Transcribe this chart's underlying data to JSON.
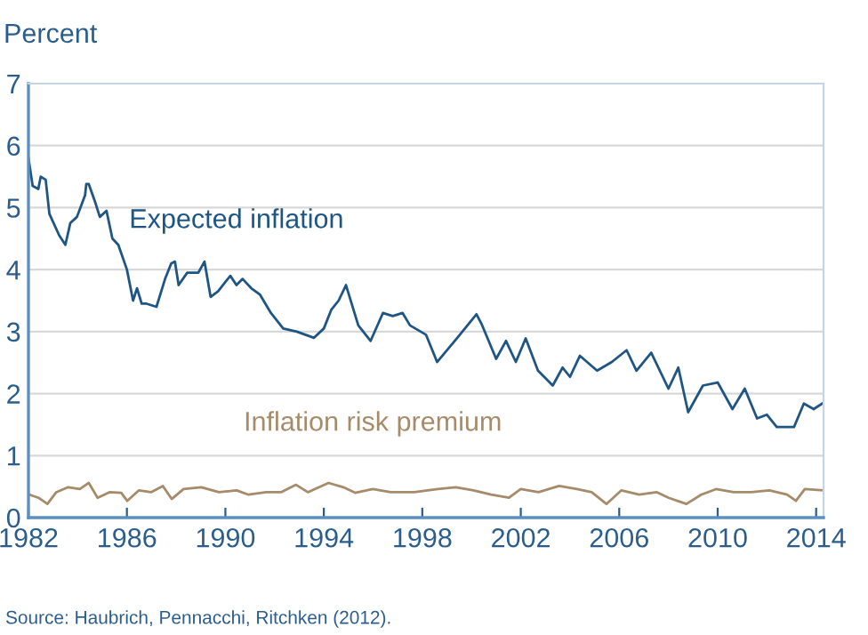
{
  "chart_data": {
    "type": "line",
    "ylabel": "Percent",
    "xlim": [
      1982,
      2014.3
    ],
    "xticks": [
      1982,
      1986,
      1990,
      1994,
      1998,
      2002,
      2006,
      2010,
      2014
    ],
    "ylim": [
      0,
      7
    ],
    "yticks": [
      0,
      1,
      2,
      3,
      4,
      5,
      6,
      7
    ],
    "grid": "y",
    "legend": false,
    "marker": "none",
    "line_style": "solid",
    "series": [
      {
        "name": "Expected inflation",
        "color": "#1f5582",
        "x": [
          1982.0,
          1982.17,
          1982.4,
          1982.5,
          1982.7,
          1982.85,
          1983.25,
          1983.5,
          1983.7,
          1983.97,
          1984.3,
          1984.35,
          1984.45,
          1984.7,
          1984.9,
          1985.17,
          1985.41,
          1985.65,
          1986.0,
          1986.25,
          1986.41,
          1986.6,
          1986.8,
          1987.2,
          1987.55,
          1987.8,
          1987.95,
          1988.1,
          1988.45,
          1988.9,
          1989.15,
          1989.4,
          1989.7,
          1990.2,
          1990.45,
          1990.7,
          1991.05,
          1991.4,
          1991.85,
          1992.35,
          1992.9,
          1993.6,
          1994.0,
          1994.3,
          1994.6,
          1994.9,
          1995.4,
          1995.9,
          1996.4,
          1996.8,
          1997.2,
          1997.5,
          1998.15,
          1998.6,
          1999.4,
          2000.2,
          2000.4,
          2001.0,
          2001.4,
          2001.8,
          2002.2,
          2002.7,
          2003.3,
          2003.7,
          2004.0,
          2004.4,
          2005.1,
          2005.7,
          2006.3,
          2006.7,
          2007.3,
          2008.0,
          2008.4,
          2008.8,
          2009.4,
          2010.0,
          2010.6,
          2011.1,
          2011.6,
          2012.0,
          2012.4,
          2013.1,
          2013.5,
          2013.9,
          2014.25
        ],
        "values": [
          5.8,
          5.35,
          5.3,
          5.5,
          5.45,
          4.9,
          4.55,
          4.4,
          4.75,
          4.85,
          5.2,
          5.38,
          5.38,
          5.1,
          4.85,
          4.95,
          4.5,
          4.4,
          4.0,
          3.5,
          3.7,
          3.45,
          3.45,
          3.4,
          3.85,
          4.1,
          4.13,
          3.75,
          3.95,
          3.95,
          4.13,
          3.56,
          3.65,
          3.9,
          3.75,
          3.85,
          3.7,
          3.6,
          3.3,
          3.05,
          3.0,
          2.9,
          3.05,
          3.35,
          3.5,
          3.75,
          3.1,
          2.85,
          3.3,
          3.25,
          3.3,
          3.1,
          2.95,
          2.51,
          2.89,
          3.28,
          3.13,
          2.56,
          2.85,
          2.51,
          2.89,
          2.37,
          2.13,
          2.42,
          2.27,
          2.61,
          2.37,
          2.51,
          2.7,
          2.37,
          2.66,
          2.08,
          2.42,
          1.7,
          2.13,
          2.18,
          1.75,
          2.08,
          1.6,
          1.66,
          1.46,
          1.46,
          1.84,
          1.75,
          1.84
        ]
      },
      {
        "name": "Inflation risk premium",
        "color": "#a58b6a",
        "x": [
          1982.05,
          1982.41,
          1982.77,
          1983.13,
          1983.61,
          1984.09,
          1984.45,
          1984.81,
          1985.29,
          1985.77,
          1986.01,
          1986.49,
          1986.98,
          1987.46,
          1987.82,
          1988.3,
          1989.02,
          1989.74,
          1990.46,
          1990.94,
          1991.66,
          1992.26,
          1992.87,
          1993.35,
          1994.19,
          1994.79,
          1995.27,
          1995.99,
          1996.71,
          1997.67,
          1998.63,
          1999.36,
          2000.08,
          2000.8,
          2001.52,
          2002.0,
          2002.72,
          2003.56,
          2004.28,
          2004.88,
          2005.48,
          2006.09,
          2006.81,
          2007.53,
          2008.01,
          2008.73,
          2009.33,
          2009.93,
          2010.65,
          2011.37,
          2012.1,
          2012.82,
          2013.18,
          2013.54,
          2014.26
        ],
        "values": [
          0.37,
          0.32,
          0.22,
          0.41,
          0.49,
          0.46,
          0.56,
          0.32,
          0.41,
          0.4,
          0.27,
          0.44,
          0.41,
          0.51,
          0.3,
          0.46,
          0.49,
          0.41,
          0.44,
          0.37,
          0.41,
          0.41,
          0.53,
          0.41,
          0.56,
          0.49,
          0.4,
          0.46,
          0.41,
          0.41,
          0.46,
          0.49,
          0.44,
          0.37,
          0.32,
          0.46,
          0.41,
          0.51,
          0.46,
          0.41,
          0.22,
          0.44,
          0.37,
          0.41,
          0.32,
          0.22,
          0.37,
          0.46,
          0.41,
          0.41,
          0.44,
          0.37,
          0.27,
          0.46,
          0.44
        ]
      }
    ],
    "annotations": [
      "Source: Haubrich, Pennacchi, Ritchken (2012)."
    ]
  }
}
